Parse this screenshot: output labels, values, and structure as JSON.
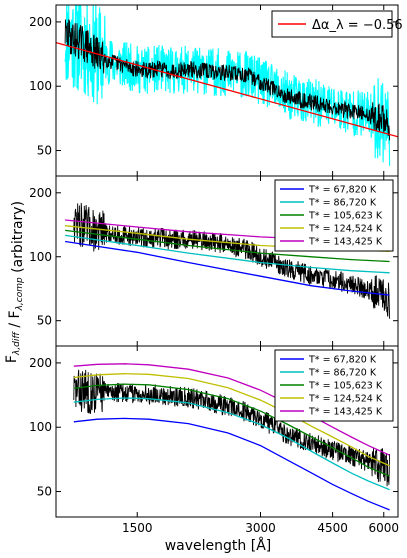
{
  "figure": {
    "ylabel": "F$_{\\lambda,diff}$ / F$_{\\lambda,comp}$ (arbitrary)",
    "xlabel": "wavelength [Å]"
  },
  "chart_data": [
    {
      "type": "line",
      "xscale": "log",
      "yscale": "log",
      "xlim": [
        950,
        6500
      ],
      "ylim": [
        38,
        240
      ],
      "xticks": [
        {
          "v": 1500,
          "label": "1500"
        },
        {
          "v": 3000,
          "label": "3000"
        },
        {
          "v": 4500,
          "label": "4500"
        },
        {
          "v": 6000,
          "label": "6000"
        }
      ],
      "yticks": [
        {
          "v": 50,
          "label": "50"
        },
        {
          "v": 100,
          "label": "100"
        },
        {
          "v": 200,
          "label": "200"
        }
      ],
      "show_xticklabels": false,
      "legend": {
        "placement": "top-right",
        "style": "large",
        "entries": [
          {
            "label": "Δα_λ = −0.56",
            "color": "#ff0000"
          }
        ]
      },
      "noisy": [
        {
          "role": "error",
          "color": "#00ffff",
          "base": [
            [
              1000,
              175
            ],
            [
              1100,
              160
            ],
            [
              1200,
              140
            ],
            [
              1300,
              130
            ],
            [
              1400,
              125
            ],
            [
              1500,
              120
            ],
            [
              1600,
              118
            ],
            [
              1700,
              121
            ],
            [
              1800,
              118
            ],
            [
              1900,
              119
            ],
            [
              2000,
              120
            ],
            [
              2200,
              118
            ],
            [
              2400,
              116
            ],
            [
              2600,
              115
            ],
            [
              2800,
              112
            ],
            [
              3000,
              105
            ],
            [
              3200,
              98
            ],
            [
              3500,
              90
            ],
            [
              4000,
              84
            ],
            [
              4500,
              80
            ],
            [
              5000,
              76
            ],
            [
              5500,
              73
            ],
            [
              6000,
              70
            ],
            [
              6200,
              65
            ]
          ],
          "amp": 0.26,
          "seed": 11
        },
        {
          "role": "spectrum",
          "color": "#000000",
          "base": [
            [
              1000,
              175
            ],
            [
              1100,
              160
            ],
            [
              1200,
              140
            ],
            [
              1300,
              130
            ],
            [
              1400,
              125
            ],
            [
              1500,
              120
            ],
            [
              1600,
              118
            ],
            [
              1700,
              121
            ],
            [
              1800,
              118
            ],
            [
              1900,
              119
            ],
            [
              2000,
              120
            ],
            [
              2200,
              118
            ],
            [
              2400,
              116
            ],
            [
              2600,
              115
            ],
            [
              2800,
              112
            ],
            [
              3000,
              105
            ],
            [
              3200,
              98
            ],
            [
              3500,
              90
            ],
            [
              4000,
              84
            ],
            [
              4500,
              80
            ],
            [
              5000,
              76
            ],
            [
              5500,
              73
            ],
            [
              6000,
              70
            ],
            [
              6200,
              65
            ]
          ],
          "amp": 0.09,
          "seed": 29
        }
      ],
      "series": [
        {
          "name": "Δα_λ = −0.56",
          "color": "#ff0000",
          "x": [
            950,
            6500
          ],
          "y": [
            160,
            58
          ]
        }
      ]
    },
    {
      "type": "line",
      "xscale": "log",
      "yscale": "log",
      "xlim": [
        950,
        6500
      ],
      "ylim": [
        38,
        240
      ],
      "xticks": [
        {
          "v": 1500,
          "label": "1500"
        },
        {
          "v": 3000,
          "label": "3000"
        },
        {
          "v": 4500,
          "label": "4500"
        },
        {
          "v": 6000,
          "label": "6000"
        }
      ],
      "yticks": [
        {
          "v": 50,
          "label": "50"
        },
        {
          "v": 100,
          "label": "100"
        },
        {
          "v": 200,
          "label": "200"
        }
      ],
      "show_xticklabels": false,
      "legend": {
        "placement": "top-right",
        "style": "small",
        "entries": [
          {
            "label": "T* = 67,820 K",
            "color": "#0000ff"
          },
          {
            "label": "T* = 86,720 K",
            "color": "#00bfbf"
          },
          {
            "label": "T* = 105,623 K",
            "color": "#008000"
          },
          {
            "label": "T* = 124,524 K",
            "color": "#bfbf00"
          },
          {
            "label": "T* = 143,425 K",
            "color": "#bf00bf"
          }
        ]
      },
      "noisy": [
        {
          "role": "spectrum",
          "color": "#000000",
          "base": [
            [
              1050,
              150
            ],
            [
              1100,
              140
            ],
            [
              1200,
              132
            ],
            [
              1300,
              128
            ],
            [
              1400,
              126
            ],
            [
              1500,
              124
            ],
            [
              1600,
              122
            ],
            [
              1700,
              124
            ],
            [
              1800,
              120
            ],
            [
              1900,
              121
            ],
            [
              2000,
              122
            ],
            [
              2200,
              119
            ],
            [
              2400,
              116
            ],
            [
              2600,
              112
            ],
            [
              2800,
              108
            ],
            [
              3000,
              100
            ],
            [
              3200,
              95
            ],
            [
              3500,
              88
            ],
            [
              4000,
              82
            ],
            [
              4500,
              78
            ],
            [
              5000,
              74
            ],
            [
              5500,
              70
            ],
            [
              6000,
              66
            ],
            [
              6200,
              62
            ]
          ],
          "amp": 0.11,
          "seed": 47
        }
      ],
      "series": [
        {
          "name": "T* = 67,820 K",
          "color": "#0000ff",
          "x": [
            1000,
            1500,
            2000,
            3000,
            4000,
            5000,
            6200
          ],
          "y": [
            118,
            105,
            94,
            81,
            73,
            69,
            66
          ]
        },
        {
          "name": "T* = 86,720 K",
          "color": "#00bfbf",
          "x": [
            1000,
            1500,
            2000,
            3000,
            4000,
            5000,
            6200
          ],
          "y": [
            126,
            113,
            104,
            94,
            89,
            86,
            84
          ]
        },
        {
          "name": "T* = 105,623 K",
          "color": "#008000",
          "x": [
            1000,
            1500,
            2000,
            3000,
            4000,
            5000,
            6200
          ],
          "y": [
            133,
            121,
            113,
            104,
            100,
            97,
            95
          ]
        },
        {
          "name": "T* = 124,524 K",
          "color": "#bfbf00",
          "x": [
            1000,
            1500,
            2000,
            3000,
            4000,
            5000,
            6200
          ],
          "y": [
            140,
            129,
            121,
            113,
            110,
            108,
            106
          ]
        },
        {
          "name": "T* = 143,425 K",
          "color": "#bf00bf",
          "x": [
            1000,
            1500,
            2000,
            3000,
            4000,
            5000,
            6200
          ],
          "y": [
            149,
            138,
            131,
            124,
            121,
            119,
            118
          ]
        }
      ]
    },
    {
      "type": "line",
      "xscale": "log",
      "yscale": "log",
      "xlim": [
        950,
        6500
      ],
      "ylim": [
        38,
        240
      ],
      "xticks": [
        {
          "v": 1500,
          "label": "1500"
        },
        {
          "v": 3000,
          "label": "3000"
        },
        {
          "v": 4500,
          "label": "4500"
        },
        {
          "v": 6000,
          "label": "6000"
        }
      ],
      "yticks": [
        {
          "v": 50,
          "label": "50"
        },
        {
          "v": 100,
          "label": "100"
        },
        {
          "v": 200,
          "label": "200"
        }
      ],
      "show_xticklabels": true,
      "legend": {
        "placement": "top-right",
        "style": "small",
        "entries": [
          {
            "label": "T* = 67,820 K",
            "color": "#0000ff"
          },
          {
            "label": "T* = 86,720 K",
            "color": "#00bfbf"
          },
          {
            "label": "T* = 105,623 K",
            "color": "#008000"
          },
          {
            "label": "T* = 124,524 K",
            "color": "#bfbf00"
          },
          {
            "label": "T* = 143,425 K",
            "color": "#bf00bf"
          }
        ]
      },
      "noisy": [
        {
          "role": "spectrum",
          "color": "#000000",
          "base": [
            [
              1050,
              150
            ],
            [
              1100,
              148
            ],
            [
              1200,
              146
            ],
            [
              1300,
              146
            ],
            [
              1400,
              145
            ],
            [
              1500,
              144
            ],
            [
              1600,
              142
            ],
            [
              1700,
              143
            ],
            [
              1800,
              140
            ],
            [
              1900,
              139
            ],
            [
              2000,
              138
            ],
            [
              2200,
              133
            ],
            [
              2400,
              128
            ],
            [
              2600,
              122
            ],
            [
              2800,
              117
            ],
            [
              3000,
              110
            ],
            [
              3200,
              102
            ],
            [
              3500,
              92
            ],
            [
              4000,
              84
            ],
            [
              4500,
              78
            ],
            [
              5000,
              73
            ],
            [
              5500,
              69
            ],
            [
              6000,
              66
            ],
            [
              6200,
              62
            ]
          ],
          "amp": 0.11,
          "seed": 83
        }
      ],
      "series": [
        {
          "name": "T* = 67,820 K",
          "color": "#0000ff",
          "x": [
            1050,
            1200,
            1400,
            1600,
            2000,
            2500,
            3000,
            3500,
            4000,
            4500,
            5000,
            5500,
            6200
          ],
          "y": [
            106,
            109,
            110,
            109,
            104,
            94,
            82,
            70,
            61,
            54,
            49,
            45,
            41
          ]
        },
        {
          "name": "T* = 86,720 K",
          "color": "#00bfbf",
          "x": [
            1050,
            1200,
            1400,
            1600,
            2000,
            2500,
            3000,
            3500,
            4000,
            4500,
            5000,
            5500,
            6200
          ],
          "y": [
            131,
            135,
            137,
            136,
            130,
            117,
            103,
            89,
            77,
            68,
            61,
            56,
            51
          ]
        },
        {
          "name": "T* = 105,623 K",
          "color": "#008000",
          "x": [
            1050,
            1200,
            1400,
            1600,
            2000,
            2500,
            3000,
            3500,
            4000,
            4500,
            5000,
            5500,
            6200
          ],
          "y": [
            152,
            157,
            159,
            158,
            150,
            136,
            119,
            103,
            90,
            80,
            72,
            65,
            59
          ]
        },
        {
          "name": "T* = 124,524 K",
          "color": "#bfbf00",
          "x": [
            1050,
            1200,
            1400,
            1600,
            2000,
            2500,
            3000,
            3500,
            4000,
            4500,
            5000,
            5500,
            6200
          ],
          "y": [
            171,
            176,
            178,
            177,
            169,
            153,
            134,
            116,
            101,
            90,
            81,
            73,
            66
          ]
        },
        {
          "name": "T* = 143,425 K",
          "color": "#bf00bf",
          "x": [
            1050,
            1200,
            1400,
            1600,
            2000,
            2500,
            3000,
            3500,
            4000,
            4500,
            5000,
            5500,
            6200
          ],
          "y": [
            193,
            197,
            198,
            196,
            187,
            170,
            149,
            129,
            113,
            100,
            90,
            82,
            74
          ]
        }
      ]
    }
  ]
}
